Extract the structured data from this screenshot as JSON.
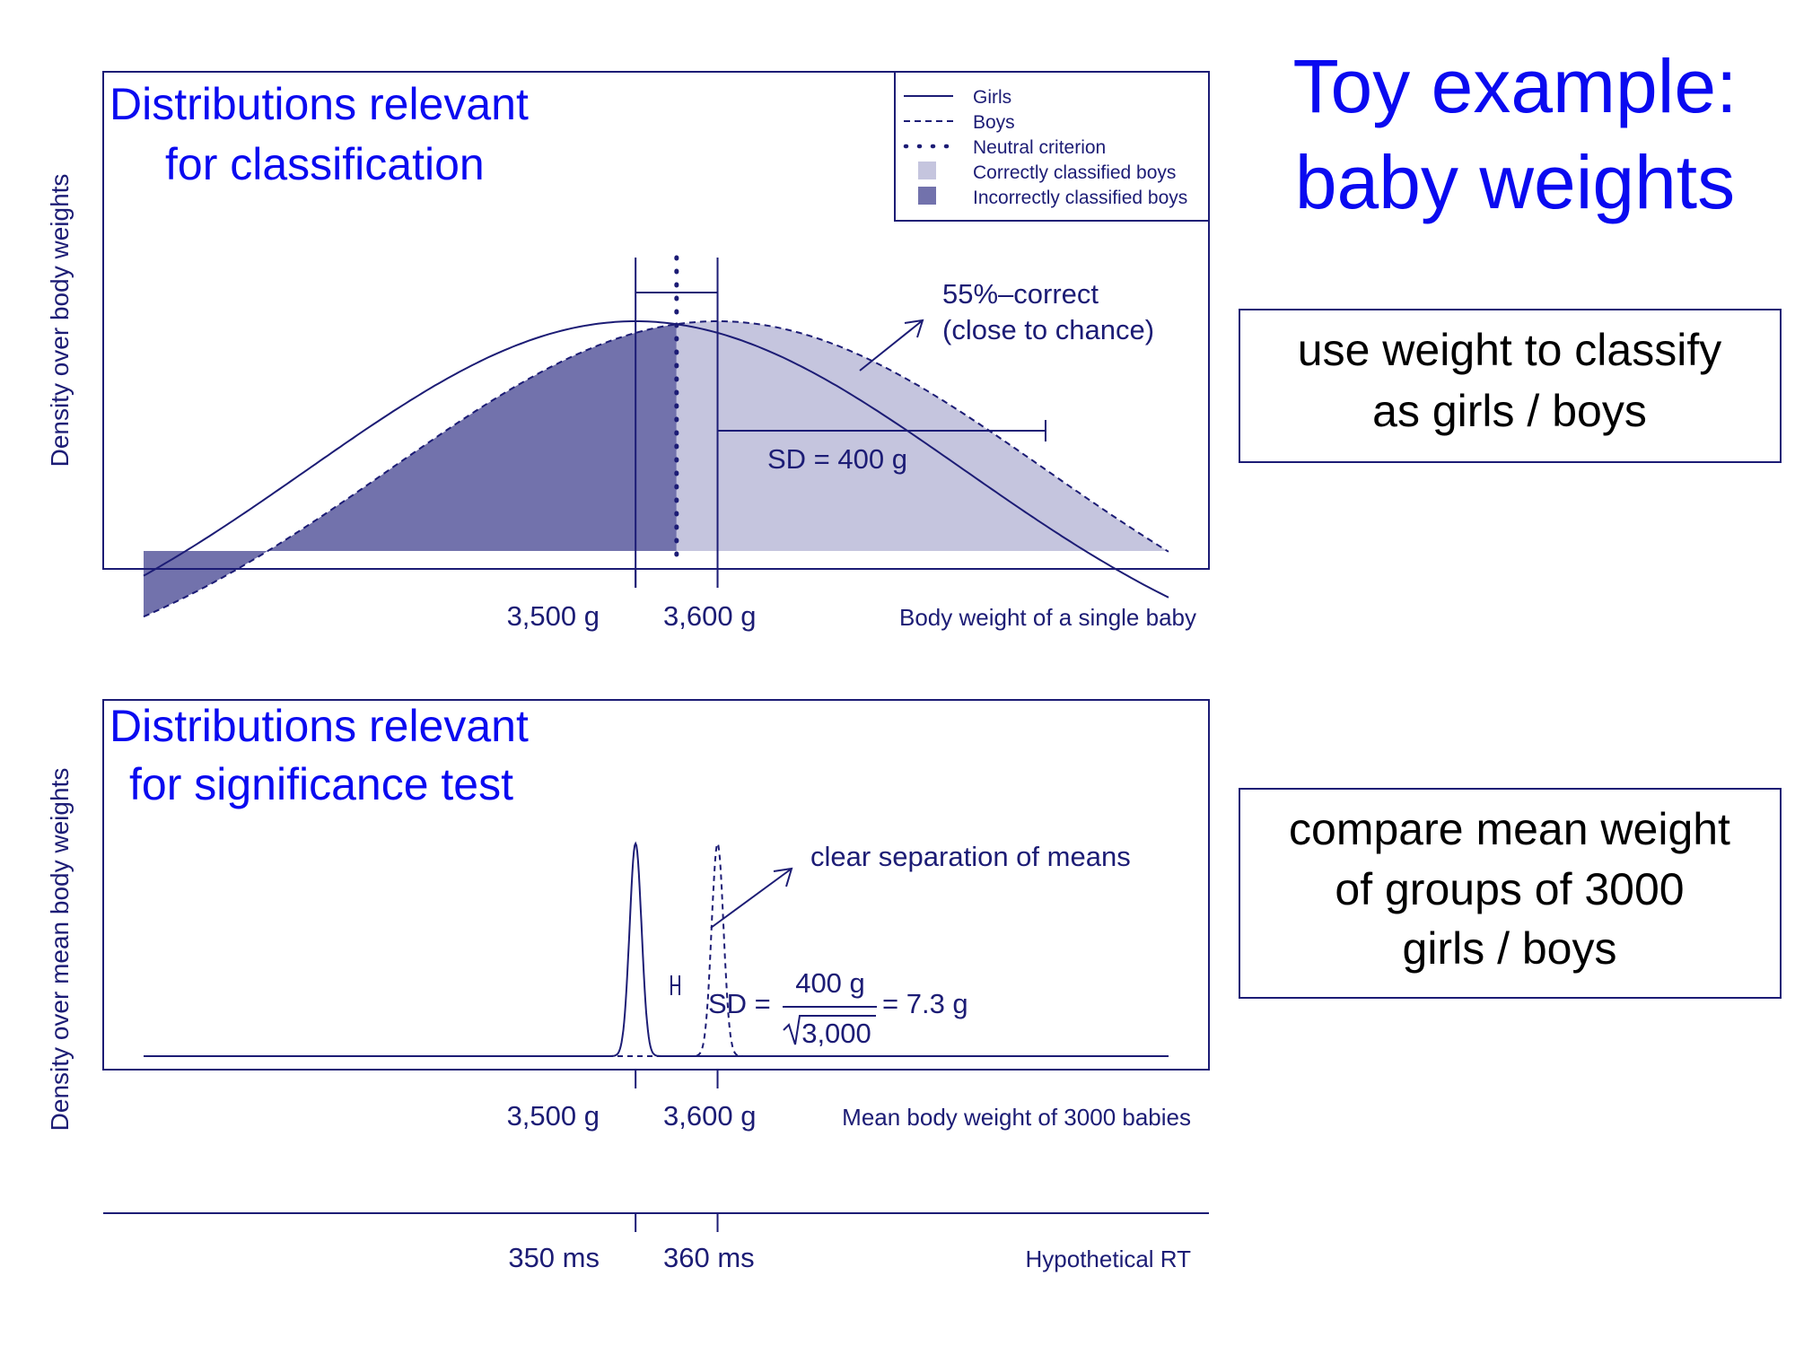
{
  "slide": {
    "title_line1": "Toy example:",
    "title_line2": "baby weights",
    "box1_line1": "use weight to classify",
    "box1_line2": "as girls / boys",
    "box2_line1": "compare mean weight",
    "box2_line2": "of groups of 3000",
    "box2_line3": "girls / boys"
  },
  "colors": {
    "ink": "#1c1c75",
    "title_blue": "#0a0af0",
    "correct_fill": "#c5c5de",
    "incorrect_fill": "#7272ac"
  },
  "chart_data": [
    {
      "type": "area",
      "panel_title_line1": "Distributions relevant",
      "panel_title_line2": "for classification",
      "ylabel": "Density over body weights",
      "xlabel": "Body weight of a single baby",
      "xlim": [
        2900,
        4150
      ],
      "ticks": [
        {
          "value": 3500,
          "label": "3,500 g"
        },
        {
          "value": 3600,
          "label": "3,600 g"
        }
      ],
      "series": [
        {
          "name": "Girls",
          "line": "solid",
          "mean": 3500,
          "sd": 400
        },
        {
          "name": "Boys",
          "line": "dashed",
          "mean": 3600,
          "sd": 400
        }
      ],
      "criterion": {
        "name": "Neutral criterion",
        "value": 3550
      },
      "regions": [
        {
          "name": "Correctly classified boys"
        },
        {
          "name": "Incorrectly classified boys"
        }
      ],
      "legend_position": "top-right",
      "annotations": {
        "accuracy_line1": "55%–correct",
        "accuracy_line2": "(close to chance)",
        "sd": "SD = 400 g"
      }
    },
    {
      "type": "line",
      "panel_title_line1": "Distributions relevant",
      "panel_title_line2": "for significance test",
      "ylabel": "Density over mean body weights",
      "xlabel": "Mean body weight of 3000 babies",
      "xlim": [
        2900,
        4150
      ],
      "ticks": [
        {
          "value": 3500,
          "label": "3,500 g"
        },
        {
          "value": 3600,
          "label": "3,600 g"
        }
      ],
      "series": [
        {
          "line": "solid",
          "mean": 3500,
          "sd": 7.3
        },
        {
          "line": "dashed",
          "mean": 3600,
          "sd": 7.3
        }
      ],
      "annotations": {
        "separation": "clear separation of means",
        "sd_prefix": "SD =",
        "sd_numerator": "400 g",
        "sd_denominator": "3,000",
        "sd_result": "= 7.3 g"
      }
    },
    {
      "type": "line",
      "xlabel": "Hypothetical RT",
      "ticks": [
        {
          "value": 350,
          "label": "350 ms"
        },
        {
          "value": 360,
          "label": "360 ms"
        }
      ]
    }
  ]
}
